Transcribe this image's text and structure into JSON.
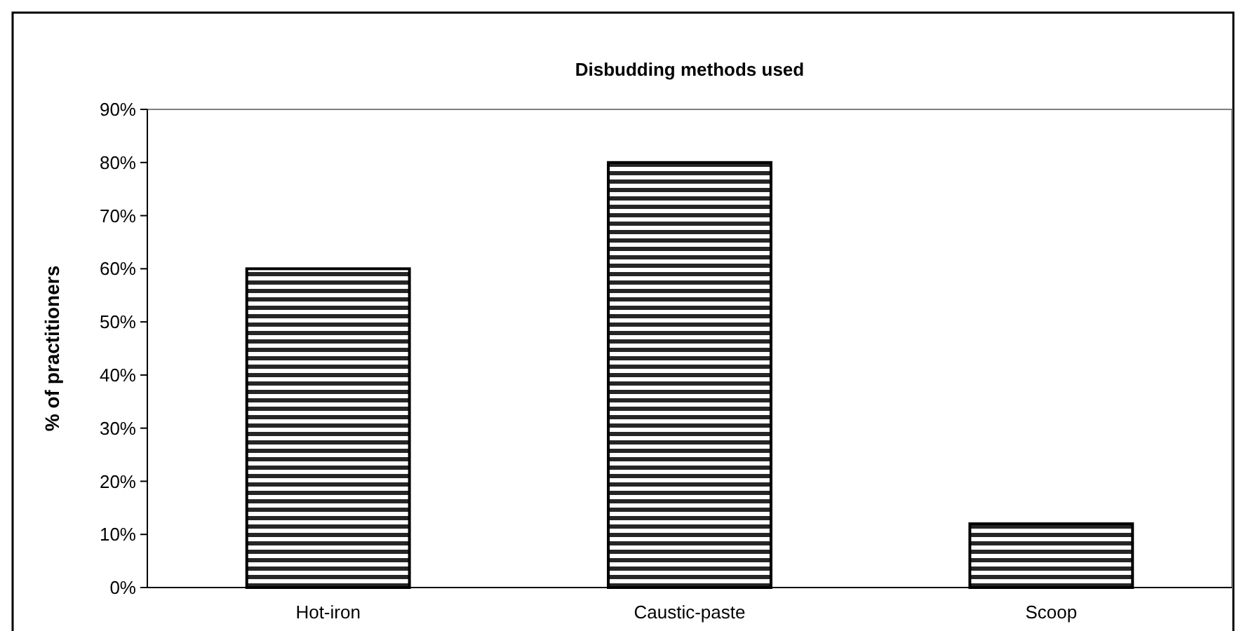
{
  "chart_data": {
    "type": "bar",
    "title": "Disbudding methods used",
    "ylabel": "% of practitioners",
    "categories": [
      "Hot-iron",
      "Caustic-paste",
      "Scoop"
    ],
    "values": [
      60,
      80,
      12
    ],
    "color": "#000000",
    "ylim": [
      0,
      90
    ],
    "yticks": [
      {
        "value": 0,
        "label": "0%"
      },
      {
        "value": 10,
        "label": "10%"
      },
      {
        "value": 20,
        "label": "20%"
      },
      {
        "value": 30,
        "label": "30%"
      },
      {
        "value": 40,
        "label": "40%"
      },
      {
        "value": 50,
        "label": "50%"
      },
      {
        "value": 60,
        "label": "60%"
      },
      {
        "value": 70,
        "label": "70%"
      },
      {
        "value": 80,
        "label": "80%"
      },
      {
        "value": 90,
        "label": "90%"
      }
    ],
    "grid": false
  }
}
